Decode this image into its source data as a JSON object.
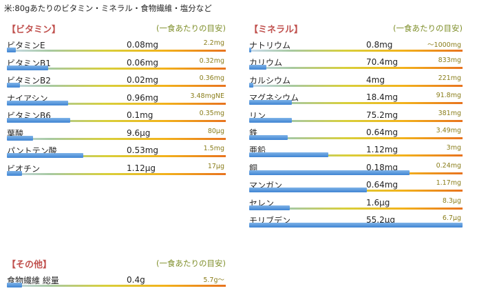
{
  "page": {
    "title": "米:80gあたりのビタミン・ミネラル・食物繊維・塩分など"
  },
  "vitamins": {
    "title": "【ビタミン】",
    "subtitle": "(一食あたりの目安)",
    "rows": [
      {
        "name": "ビタミンE",
        "amount": "0.08mg",
        "target": "2.2mg",
        "fill": 0.04
      },
      {
        "name": "ビタミンB1",
        "amount": "0.06mg",
        "target": "0.32mg",
        "fill": 0.19
      },
      {
        "name": "ビタミンB2",
        "amount": "0.02mg",
        "target": "0.36mg",
        "fill": 0.06
      },
      {
        "name": "ナイアシン",
        "amount": "0.96mg",
        "target": "3.48mgNE",
        "fill": 0.28
      },
      {
        "name": "ビタミンB6",
        "amount": "0.1mg",
        "target": "0.35mg",
        "fill": 0.29
      },
      {
        "name": "葉酸",
        "amount": "9.6μg",
        "target": "80μg",
        "fill": 0.12
      },
      {
        "name": "パントテン酸",
        "amount": "0.53mg",
        "target": "1.5mg",
        "fill": 0.35
      },
      {
        "name": "ビオチン",
        "amount": "1.12μg",
        "target": "17μg",
        "fill": 0.07
      }
    ]
  },
  "minerals": {
    "title": "【ミネラル】",
    "subtitle": "(一食あたりの目安)",
    "rows": [
      {
        "name": "ナトリウム",
        "amount": "0.8mg",
        "target": "～1000mg",
        "fill": 0.01
      },
      {
        "name": "カリウム",
        "amount": "70.4mg",
        "target": "833mg",
        "fill": 0.08
      },
      {
        "name": "カルシウム",
        "amount": "4mg",
        "target": "221mg",
        "fill": 0.02
      },
      {
        "name": "マグネシウム",
        "amount": "18.4mg",
        "target": "91.8mg",
        "fill": 0.2
      },
      {
        "name": "リン",
        "amount": "75.2mg",
        "target": "381mg",
        "fill": 0.2
      },
      {
        "name": "鉄",
        "amount": "0.64mg",
        "target": "3.49mg",
        "fill": 0.18
      },
      {
        "name": "亜鉛",
        "amount": "1.12mg",
        "target": "3mg",
        "fill": 0.37
      },
      {
        "name": "銅",
        "amount": "0.18mg",
        "target": "0.24mg",
        "fill": 0.75
      },
      {
        "name": "マンガン",
        "amount": "0.64mg",
        "target": "1.17mg",
        "fill": 0.55
      },
      {
        "name": "セレン",
        "amount": "1.6μg",
        "target": "8.3μg",
        "fill": 0.19
      },
      {
        "name": "モリブデン",
        "amount": "55.2μg",
        "target": "6.7μg",
        "fill": 1.0
      }
    ]
  },
  "other": {
    "title": "【その他】",
    "subtitle": "(一食あたりの目安)",
    "rows": [
      {
        "name": "食物繊維 総量",
        "amount": "0.4g",
        "target": "5.7g～",
        "fill": 0.07
      }
    ]
  }
}
